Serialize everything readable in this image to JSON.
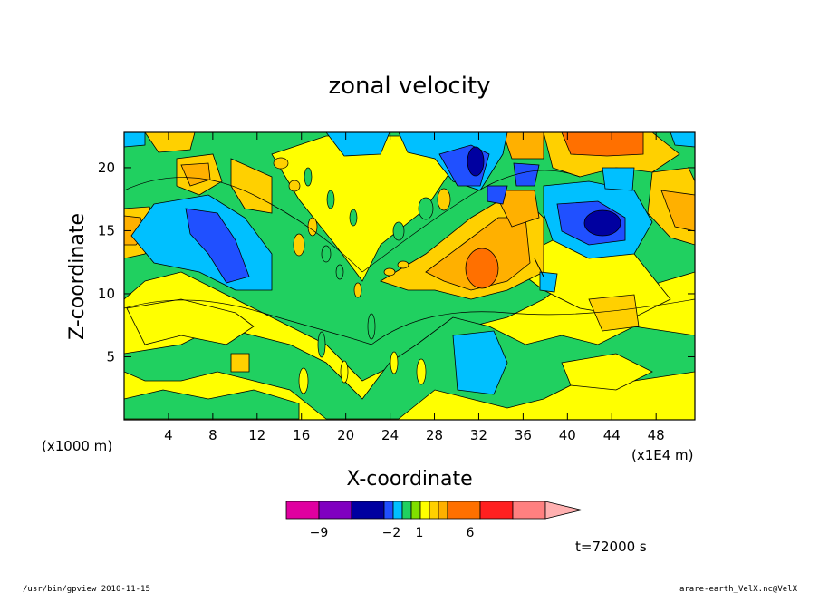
{
  "chart_data": {
    "type": "heatmap",
    "title": "zonal velocity",
    "xlabel": "X-coordinate",
    "ylabel": "Z-coordinate",
    "x_unit": "(x1E4 m)",
    "y_unit": "(x1000 m)",
    "xlim": [
      0,
      51.5
    ],
    "ylim": [
      0,
      22.8
    ],
    "x_ticks": [
      4,
      8,
      12,
      16,
      20,
      24,
      28,
      32,
      36,
      40,
      44,
      48
    ],
    "y_ticks": [
      5,
      10,
      15,
      20
    ],
    "time_label": "t=72000 s",
    "colorbar": {
      "labels": [
        {
          "value": -9,
          "text": "−9"
        },
        {
          "value": -2,
          "text": "−2"
        },
        {
          "value": 1,
          "text": "1"
        },
        {
          "value": 6,
          "text": "6"
        }
      ],
      "colors": [
        "#e000a0",
        "#8000c0",
        "#0000a0",
        "#2050ff",
        "#00c0ff",
        "#20d060",
        "#80e000",
        "#ffff00",
        "#ffd000",
        "#ffb000",
        "#ff7000",
        "#ff2020",
        "#ff8080",
        "#ffb0b0"
      ]
    },
    "regions": [
      {
        "level": "cyan",
        "x": 7.5,
        "z": 13.8
      },
      {
        "level": "blue",
        "x": 8.5,
        "z": 14.5
      },
      {
        "level": "blue",
        "x": 44.5,
        "z": 15.5
      },
      {
        "level": "blue",
        "x": 31.5,
        "z": 20.5
      },
      {
        "level": "orange",
        "x": 32.0,
        "z": 12.0
      },
      {
        "level": "orange",
        "x": 44.0,
        "z": 21.5
      },
      {
        "level": "orange",
        "x": 1.0,
        "z": 15.5
      },
      {
        "level": "orange",
        "x": 48.5,
        "z": 17.0
      },
      {
        "level": "cyan",
        "x": 32.0,
        "z": 4.0
      },
      {
        "level": "yellow",
        "x": 12.0,
        "z": 5.0
      }
    ]
  },
  "footer": {
    "left": "/usr/bin/gpview   2010-11-15",
    "right": "arare-earth_VelX.nc@VelX"
  }
}
